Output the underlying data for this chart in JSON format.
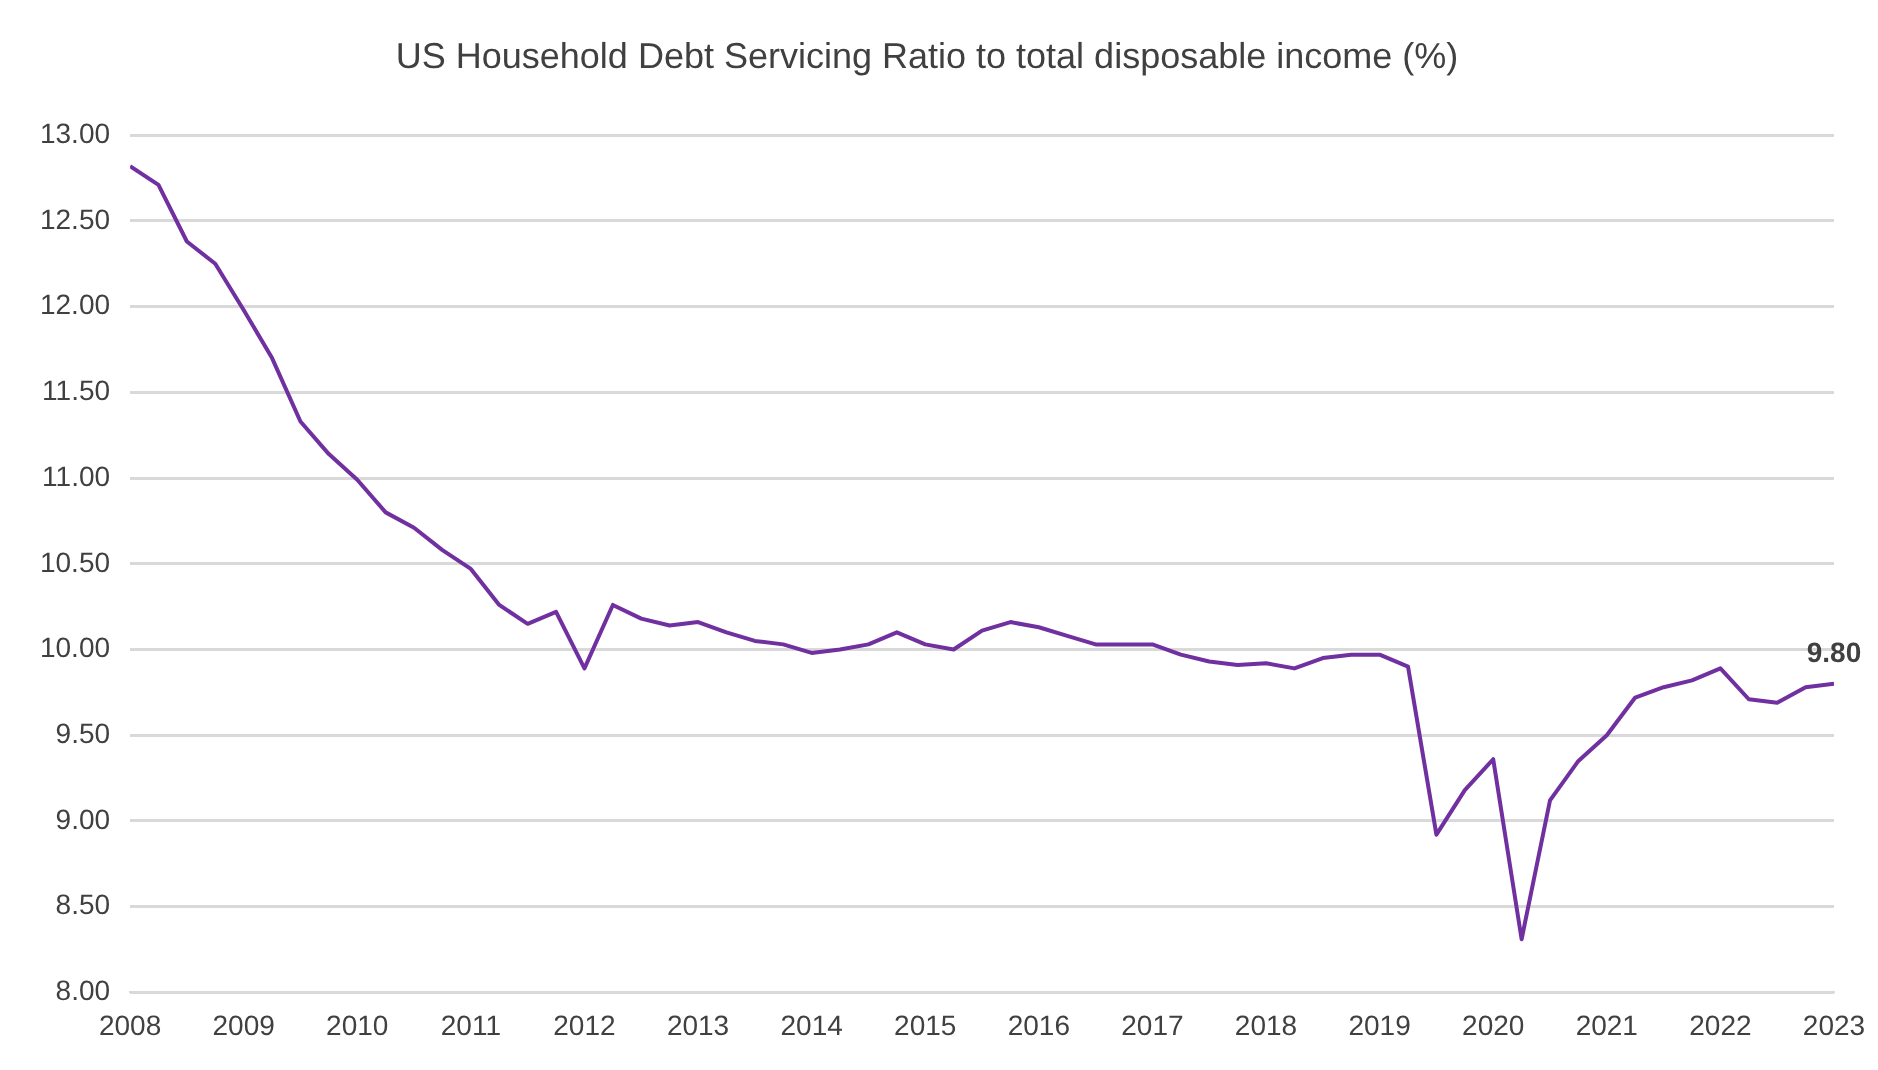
{
  "chart_data": {
    "type": "line",
    "title": "US Household Debt Servicing Ratio to total disposable income (%)",
    "x": [
      2008,
      2008.25,
      2008.5,
      2008.75,
      2009,
      2009.25,
      2009.5,
      2009.75,
      2010,
      2010.25,
      2010.5,
      2010.75,
      2011,
      2011.25,
      2011.5,
      2011.75,
      2012,
      2012.25,
      2012.5,
      2012.75,
      2013,
      2013.25,
      2013.5,
      2013.75,
      2014,
      2014.25,
      2014.5,
      2014.75,
      2015,
      2015.25,
      2015.5,
      2015.75,
      2016,
      2016.25,
      2016.5,
      2016.75,
      2017,
      2017.25,
      2017.5,
      2017.75,
      2018,
      2018.25,
      2018.5,
      2018.75,
      2019,
      2019.25,
      2019.5,
      2019.75,
      2020,
      2020.25,
      2020.5,
      2020.75,
      2021,
      2021.25,
      2021.5,
      2021.75,
      2022,
      2022.25,
      2022.5,
      2022.75,
      2023
    ],
    "series": [
      {
        "color": "#7030a0",
        "values": [
          12.82,
          12.71,
          12.38,
          12.25,
          11.98,
          11.7,
          11.33,
          11.14,
          10.99,
          10.8,
          10.71,
          10.58,
          10.47,
          10.26,
          10.15,
          10.22,
          9.89,
          10.26,
          10.18,
          10.14,
          10.16,
          10.1,
          10.05,
          10.03,
          9.98,
          10.0,
          10.03,
          10.1,
          10.03,
          10.0,
          10.11,
          10.16,
          10.13,
          10.08,
          10.03,
          10.03,
          10.03,
          9.97,
          9.93,
          9.91,
          9.92,
          9.89,
          9.95,
          9.97,
          9.97,
          9.9,
          8.92,
          9.18,
          9.36,
          8.31,
          9.12,
          9.35,
          9.5,
          9.72,
          9.78,
          9.82,
          9.89,
          9.71,
          9.69,
          9.78,
          9.8
        ],
        "value_labels": [
          null,
          null,
          null,
          null,
          null,
          null,
          null,
          null,
          null,
          null,
          null,
          null,
          null,
          null,
          null,
          null,
          null,
          null,
          null,
          null,
          null,
          null,
          null,
          null,
          null,
          null,
          null,
          null,
          null,
          null,
          null,
          null,
          null,
          null,
          null,
          null,
          null,
          null,
          null,
          null,
          null,
          null,
          null,
          null,
          null,
          null,
          null,
          null,
          null,
          null,
          null,
          null,
          null,
          null,
          null,
          null,
          null,
          null,
          null,
          null,
          "9.80"
        ]
      }
    ],
    "xlim": [
      2008,
      2023
    ],
    "xticks": [
      2008,
      2009,
      2010,
      2011,
      2012,
      2013,
      2014,
      2015,
      2016,
      2017,
      2018,
      2019,
      2020,
      2021,
      2022,
      2023
    ],
    "ylim": [
      8,
      13
    ],
    "yticks": [
      {
        "value": 8,
        "label": "8.00"
      },
      {
        "value": 8.5,
        "label": "8.50"
      },
      {
        "value": 9,
        "label": "9.00"
      },
      {
        "value": 9.5,
        "label": "9.50"
      },
      {
        "value": 10,
        "label": "10.00"
      },
      {
        "value": 10.5,
        "label": "10.50"
      },
      {
        "value": 11,
        "label": "11.00"
      },
      {
        "value": 11.5,
        "label": "11.50"
      },
      {
        "value": 12,
        "label": "12.00"
      },
      {
        "value": 12.5,
        "label": "12.50"
      },
      {
        "value": 13,
        "label": "13.00"
      }
    ],
    "grid": "y",
    "legend": false,
    "marker": "none",
    "line_style": "solid"
  }
}
